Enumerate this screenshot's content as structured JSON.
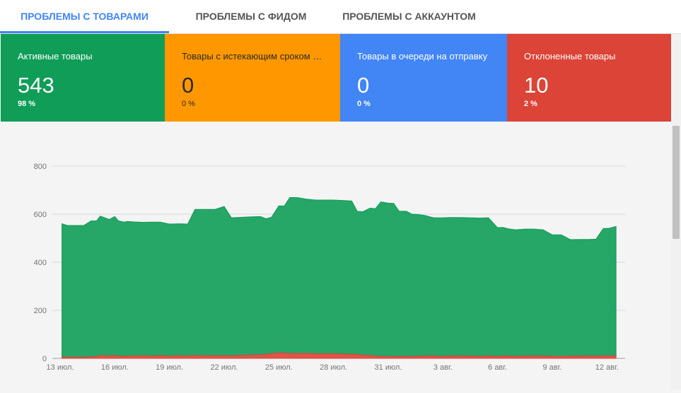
{
  "tabs": [
    {
      "label": "ПРОБЛЕМЫ С ТОВАРАМИ",
      "active": true
    },
    {
      "label": "ПРОБЛЕМЫ С ФИДОМ",
      "active": false
    },
    {
      "label": "ПРОБЛЕМЫ С АККАУНТОМ",
      "active": false
    }
  ],
  "cards": [
    {
      "title": "Активные товары",
      "value": "543",
      "pct": "98 %",
      "color": "#0f9d58"
    },
    {
      "title": "Товары с истекающим сроком …",
      "value": "0",
      "pct": "0 %",
      "color": "#ff9800"
    },
    {
      "title": "Товары в очереди на отправку",
      "value": "0",
      "pct": "0 %",
      "color": "#4285f4"
    },
    {
      "title": "Отклоненные товары",
      "value": "10",
      "pct": "2 %",
      "color": "#db4437"
    }
  ],
  "chart_data": {
    "type": "area",
    "stacked": true,
    "ylim": [
      0,
      800
    ],
    "yticks": [
      0,
      200,
      400,
      600,
      800
    ],
    "xlim": [
      0,
      31
    ],
    "x_tick_labels": [
      "13 июл.",
      "16 июл.",
      "19 июл.",
      "22 июл.",
      "25 июл.",
      "28 июл.",
      "31 июл.",
      "3 авг.",
      "6 авг.",
      "9 авг.",
      "12 авг."
    ],
    "x_tick_positions": [
      0,
      3,
      6,
      9,
      12,
      15,
      18,
      21,
      24,
      27,
      30
    ],
    "grid": true,
    "x": [
      0.1,
      0.4,
      1,
      1.3,
      1.7,
      2,
      2.2,
      2.7,
      3,
      3.2,
      3.5,
      3.7,
      4,
      4.5,
      5,
      5.5,
      6,
      6.5,
      7,
      7.4,
      8,
      8.5,
      9,
      9.4,
      10,
      10.5,
      11,
      11.3,
      11.6,
      12,
      12.3,
      12.6,
      13,
      13.5,
      14,
      14.5,
      15,
      15.5,
      16,
      16.3,
      16.6,
      17,
      17.3,
      17.6,
      18,
      18.3,
      18.6,
      19,
      19.3,
      19.6,
      20,
      20.5,
      21,
      21.4,
      22,
      22.5,
      23,
      23.5,
      24,
      24.3,
      24.6,
      25,
      25.5,
      26,
      26.5,
      27,
      27.2,
      27.5,
      28,
      28.5,
      29,
      29.4,
      29.8,
      30.1,
      30.5
    ],
    "series": [
      {
        "name": "Отклоненные товары",
        "color": "#db4437",
        "values": [
          5,
          5,
          5,
          5,
          7,
          7,
          12,
          10,
          12,
          10,
          9,
          10,
          10,
          11,
          10,
          11,
          10,
          11,
          10,
          12,
          11,
          11,
          11,
          11,
          13,
          14,
          15,
          17,
          20,
          23,
          22,
          21,
          21,
          21,
          19,
          19,
          19,
          18,
          17,
          16,
          14,
          12,
          10,
          9,
          8,
          8,
          8,
          8,
          8,
          9,
          10,
          10,
          9,
          10,
          10,
          10,
          9,
          10,
          9,
          10,
          10,
          9,
          10,
          10,
          10,
          9,
          9,
          9,
          9,
          10,
          10,
          10,
          10,
          11,
          10
        ]
      },
      {
        "name": "Активные товары",
        "color": "#0f9d58",
        "values": [
          555,
          548,
          548,
          548,
          565,
          565,
          580,
          568,
          578,
          562,
          558,
          560,
          558,
          555,
          557,
          556,
          549,
          549,
          549,
          608,
          609,
          609,
          621,
          574,
          574,
          575,
          575,
          564,
          567,
          612,
          612,
          648,
          648,
          642,
          640,
          640,
          640,
          639,
          638,
          596,
          596,
          613,
          613,
          642,
          638,
          637,
          604,
          604,
          592,
          590,
          585,
          575,
          576,
          576,
          576,
          575,
          575,
          575,
          535,
          535,
          529,
          526,
          528,
          528,
          525,
          505,
          505,
          505,
          485,
          485,
          485,
          486,
          530,
          530,
          539
        ]
      }
    ]
  }
}
